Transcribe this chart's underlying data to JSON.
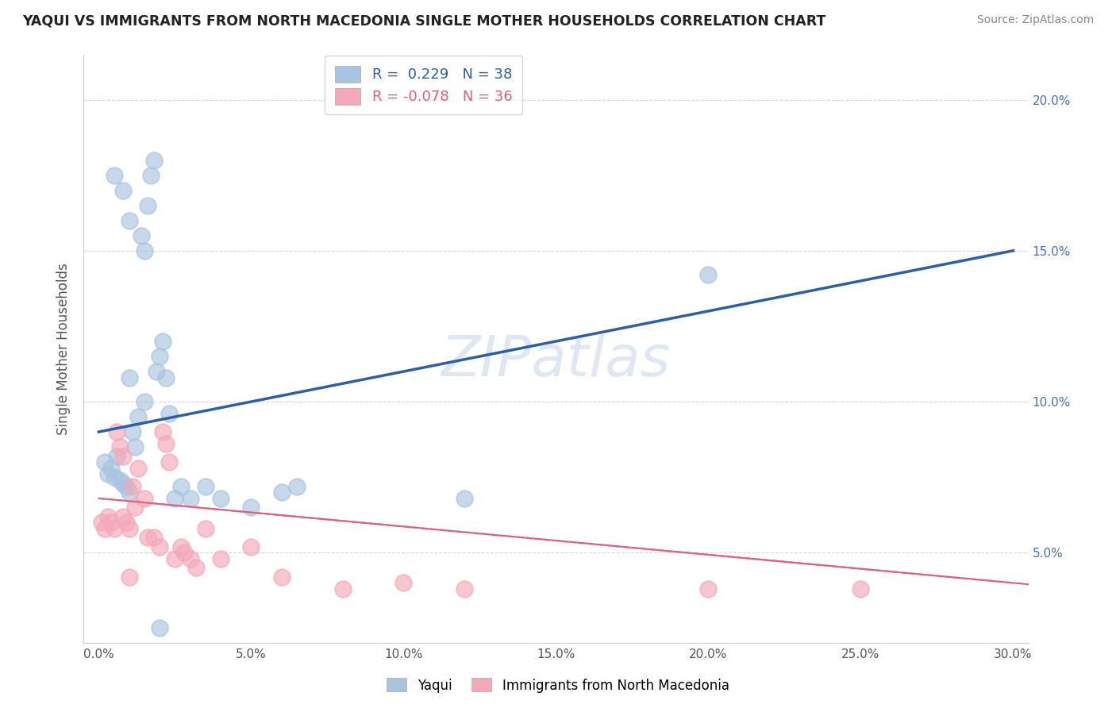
{
  "title": "YAQUI VS IMMIGRANTS FROM NORTH MACEDONIA SINGLE MOTHER HOUSEHOLDS CORRELATION CHART",
  "source": "Source: ZipAtlas.com",
  "ylabel": "Single Mother Households",
  "watermark": "ZIPatlas",
  "xlim": [
    -0.005,
    0.305
  ],
  "ylim": [
    0.02,
    0.215
  ],
  "ytick_vals": [
    0.05,
    0.1,
    0.15,
    0.2
  ],
  "xtick_vals": [
    0.0,
    0.05,
    0.1,
    0.15,
    0.2,
    0.25,
    0.3
  ],
  "yaqui_R": 0.229,
  "yaqui_N": 38,
  "macedonian_R": -0.078,
  "macedonian_N": 36,
  "blue_scatter_color": "#A8C4E0",
  "pink_scatter_color": "#F4A8B8",
  "blue_line_color": "#2E5FA3",
  "pink_line_color": "#E0607A",
  "ytick_color": "#4472C4",
  "title_color": "#222222",
  "grid_color": "#CCCCCC",
  "background_color": "#FFFFFF",
  "yaqui_x": [
    0.002,
    0.003,
    0.004,
    0.005,
    0.006,
    0.007,
    0.008,
    0.009,
    0.01,
    0.01,
    0.011,
    0.012,
    0.013,
    0.014,
    0.015,
    0.016,
    0.017,
    0.018,
    0.019,
    0.02,
    0.021,
    0.022,
    0.023,
    0.025,
    0.027,
    0.03,
    0.035,
    0.04,
    0.05,
    0.06,
    0.065,
    0.12,
    0.2,
    0.005,
    0.008,
    0.01,
    0.015,
    0.02
  ],
  "yaqui_y": [
    0.08,
    0.076,
    0.078,
    0.075,
    0.082,
    0.074,
    0.073,
    0.072,
    0.07,
    0.108,
    0.09,
    0.085,
    0.095,
    0.155,
    0.1,
    0.165,
    0.175,
    0.18,
    0.11,
    0.115,
    0.12,
    0.108,
    0.096,
    0.068,
    0.072,
    0.068,
    0.072,
    0.068,
    0.065,
    0.07,
    0.072,
    0.068,
    0.142,
    0.175,
    0.17,
    0.16,
    0.15,
    0.025
  ],
  "macedonian_x": [
    0.001,
    0.002,
    0.003,
    0.004,
    0.005,
    0.006,
    0.007,
    0.008,
    0.008,
    0.009,
    0.01,
    0.011,
    0.012,
    0.013,
    0.015,
    0.016,
    0.018,
    0.02,
    0.021,
    0.022,
    0.023,
    0.025,
    0.027,
    0.028,
    0.03,
    0.032,
    0.035,
    0.04,
    0.05,
    0.06,
    0.08,
    0.1,
    0.12,
    0.2,
    0.25,
    0.01
  ],
  "macedonian_y": [
    0.06,
    0.058,
    0.062,
    0.06,
    0.058,
    0.09,
    0.085,
    0.082,
    0.062,
    0.06,
    0.058,
    0.072,
    0.065,
    0.078,
    0.068,
    0.055,
    0.055,
    0.052,
    0.09,
    0.086,
    0.08,
    0.048,
    0.052,
    0.05,
    0.048,
    0.045,
    0.058,
    0.048,
    0.052,
    0.042,
    0.038,
    0.04,
    0.038,
    0.038,
    0.038,
    0.042
  ]
}
